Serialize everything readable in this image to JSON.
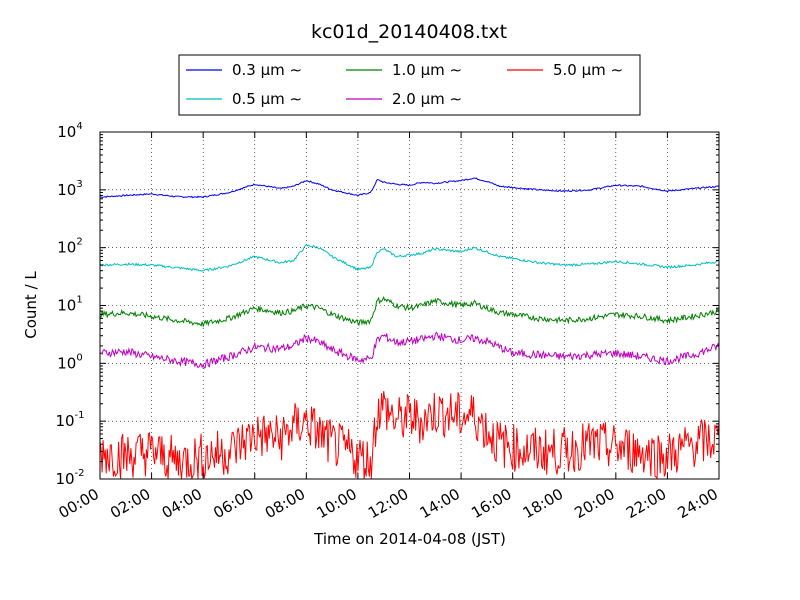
{
  "chart_data": {
    "type": "line",
    "title": "kc01d_20140408.txt",
    "xlabel": "Time on 2014-04-08 (JST)",
    "ylabel": "Count / L",
    "yscale": "log",
    "ylim": [
      0.01,
      10000
    ],
    "xlim": [
      "00:00",
      "24:00"
    ],
    "grid": true,
    "legend_position": "top-center",
    "x_ticks": [
      "00:00",
      "02:00",
      "04:00",
      "06:00",
      "08:00",
      "10:00",
      "12:00",
      "14:00",
      "16:00",
      "18:00",
      "20:00",
      "22:00",
      "24:00"
    ],
    "y_ticks": [
      {
        "base": "10",
        "exp": "-2",
        "value": 0.01
      },
      {
        "base": "10",
        "exp": "-1",
        "value": 0.1
      },
      {
        "base": "10",
        "exp": "0",
        "value": 1
      },
      {
        "base": "10",
        "exp": "1",
        "value": 10
      },
      {
        "base": "10",
        "exp": "2",
        "value": 100
      },
      {
        "base": "10",
        "exp": "3",
        "value": 1000
      },
      {
        "base": "10",
        "exp": "4",
        "value": 10000
      }
    ],
    "series": [
      {
        "name": "0.3 μm ∼",
        "color": "#0000ff",
        "x": [
          "00:00",
          "01:00",
          "02:00",
          "03:00",
          "04:00",
          "05:00",
          "06:00",
          "07:00",
          "07:30",
          "08:00",
          "08:30",
          "09:00",
          "10:00",
          "10:30",
          "10:45",
          "11:00",
          "11:30",
          "12:00",
          "12:30",
          "13:00",
          "14:00",
          "14:30",
          "15:00",
          "15:30",
          "16:00",
          "17:00",
          "18:00",
          "19:00",
          "20:00",
          "21:00",
          "22:00",
          "23:00",
          "24:00"
        ],
        "values": [
          750,
          800,
          850,
          760,
          750,
          900,
          1250,
          1050,
          1150,
          1450,
          1250,
          1000,
          800,
          900,
          1500,
          1350,
          1250,
          1200,
          1350,
          1300,
          1450,
          1600,
          1400,
          1150,
          1100,
          1000,
          950,
          1000,
          1200,
          1150,
          950,
          1050,
          1150
        ]
      },
      {
        "name": "0.5 μm ∼",
        "color": "#00bfbf",
        "x": [
          "00:00",
          "01:00",
          "02:00",
          "03:00",
          "04:00",
          "05:00",
          "06:00",
          "07:00",
          "07:30",
          "08:00",
          "08:30",
          "09:00",
          "10:00",
          "10:30",
          "10:45",
          "11:00",
          "11:30",
          "12:00",
          "12:30",
          "13:00",
          "14:00",
          "14:30",
          "15:00",
          "15:30",
          "16:00",
          "17:00",
          "18:00",
          "19:00",
          "20:00",
          "21:00",
          "22:00",
          "23:00",
          "24:00"
        ],
        "values": [
          50,
          52,
          50,
          45,
          40,
          48,
          70,
          55,
          60,
          110,
          100,
          70,
          42,
          45,
          85,
          95,
          70,
          75,
          80,
          95,
          85,
          100,
          85,
          70,
          65,
          55,
          50,
          52,
          58,
          52,
          46,
          50,
          58
        ]
      },
      {
        "name": "1.0 μm ∼",
        "color": "#008000",
        "x": [
          "00:00",
          "01:00",
          "02:00",
          "03:00",
          "04:00",
          "05:00",
          "06:00",
          "07:00",
          "07:30",
          "08:00",
          "08:30",
          "09:00",
          "10:00",
          "10:30",
          "10:45",
          "11:00",
          "11:30",
          "12:00",
          "12:30",
          "13:00",
          "14:00",
          "14:30",
          "15:00",
          "15:30",
          "16:00",
          "17:00",
          "18:00",
          "19:00",
          "20:00",
          "21:00",
          "22:00",
          "23:00",
          "24:00"
        ],
        "values": [
          7,
          7.5,
          6.5,
          5.5,
          4.8,
          6,
          9,
          7.5,
          8,
          10,
          9,
          7,
          5,
          5.5,
          12,
          13,
          10,
          9,
          10,
          12,
          10,
          11,
          9,
          7.5,
          7,
          6,
          5.5,
          6,
          7,
          6.5,
          5.5,
          6.5,
          8
        ]
      },
      {
        "name": "2.0 μm ∼",
        "color": "#bf00bf",
        "x": [
          "00:00",
          "01:00",
          "02:00",
          "03:00",
          "04:00",
          "05:00",
          "06:00",
          "07:00",
          "07:30",
          "08:00",
          "08:30",
          "09:00",
          "10:00",
          "10:30",
          "10:45",
          "11:00",
          "11:30",
          "12:00",
          "12:30",
          "13:00",
          "14:00",
          "14:30",
          "15:00",
          "15:30",
          "16:00",
          "17:00",
          "18:00",
          "19:00",
          "20:00",
          "21:00",
          "22:00",
          "23:00",
          "24:00"
        ],
        "values": [
          1.5,
          1.6,
          1.3,
          1.1,
          0.95,
          1.3,
          1.9,
          1.8,
          2.0,
          2.8,
          2.3,
          1.7,
          1.15,
          1.2,
          2.5,
          3.0,
          2.3,
          2.4,
          2.6,
          3.0,
          2.5,
          2.7,
          2.4,
          1.9,
          1.5,
          1.4,
          1.3,
          1.4,
          1.5,
          1.3,
          1.1,
          1.4,
          2.0
        ]
      },
      {
        "name": "5.0 μm ∼",
        "color": "#ff0000",
        "x": [
          "00:00",
          "01:00",
          "02:00",
          "03:00",
          "04:00",
          "05:00",
          "06:00",
          "07:00",
          "07:30",
          "08:00",
          "08:30",
          "09:00",
          "10:00",
          "10:30",
          "10:45",
          "11:00",
          "11:30",
          "12:00",
          "12:30",
          "13:00",
          "14:00",
          "14:30",
          "15:00",
          "15:30",
          "16:00",
          "17:00",
          "18:00",
          "19:00",
          "20:00",
          "21:00",
          "22:00",
          "23:00",
          "24:00"
        ],
        "values": [
          0.03,
          0.025,
          0.03,
          0.02,
          0.025,
          0.03,
          0.06,
          0.05,
          0.08,
          0.1,
          0.06,
          0.04,
          0.025,
          0.02,
          0.15,
          0.18,
          0.1,
          0.12,
          0.1,
          0.15,
          0.12,
          0.13,
          0.07,
          0.04,
          0.035,
          0.03,
          0.03,
          0.04,
          0.035,
          0.03,
          0.025,
          0.04,
          0.05
        ]
      }
    ]
  }
}
